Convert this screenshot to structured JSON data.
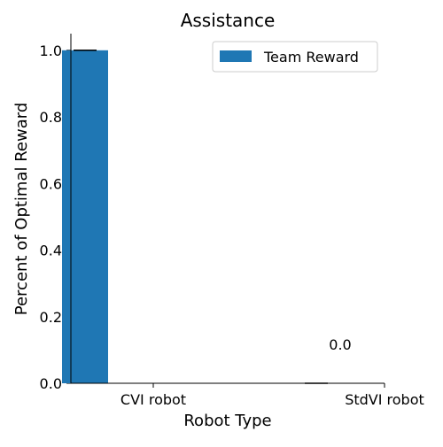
{
  "chart_data": {
    "type": "bar",
    "title": "Assistance",
    "xlabel": "Robot Type",
    "ylabel": "Percent of Optimal Reward",
    "categories": [
      "CVI robot",
      "StdVI robot"
    ],
    "series": [
      {
        "name": "Team Reward",
        "values": [
          1.0,
          0.0
        ],
        "color": "#1f77b4"
      }
    ],
    "data_labels": [
      "",
      "0.0"
    ],
    "ylim": [
      0,
      1.05
    ],
    "yticks": [
      "0.0",
      "0.2",
      "0.4",
      "0.6",
      "0.8",
      "1.0"
    ],
    "legend_position": "top-right",
    "grid": false
  }
}
